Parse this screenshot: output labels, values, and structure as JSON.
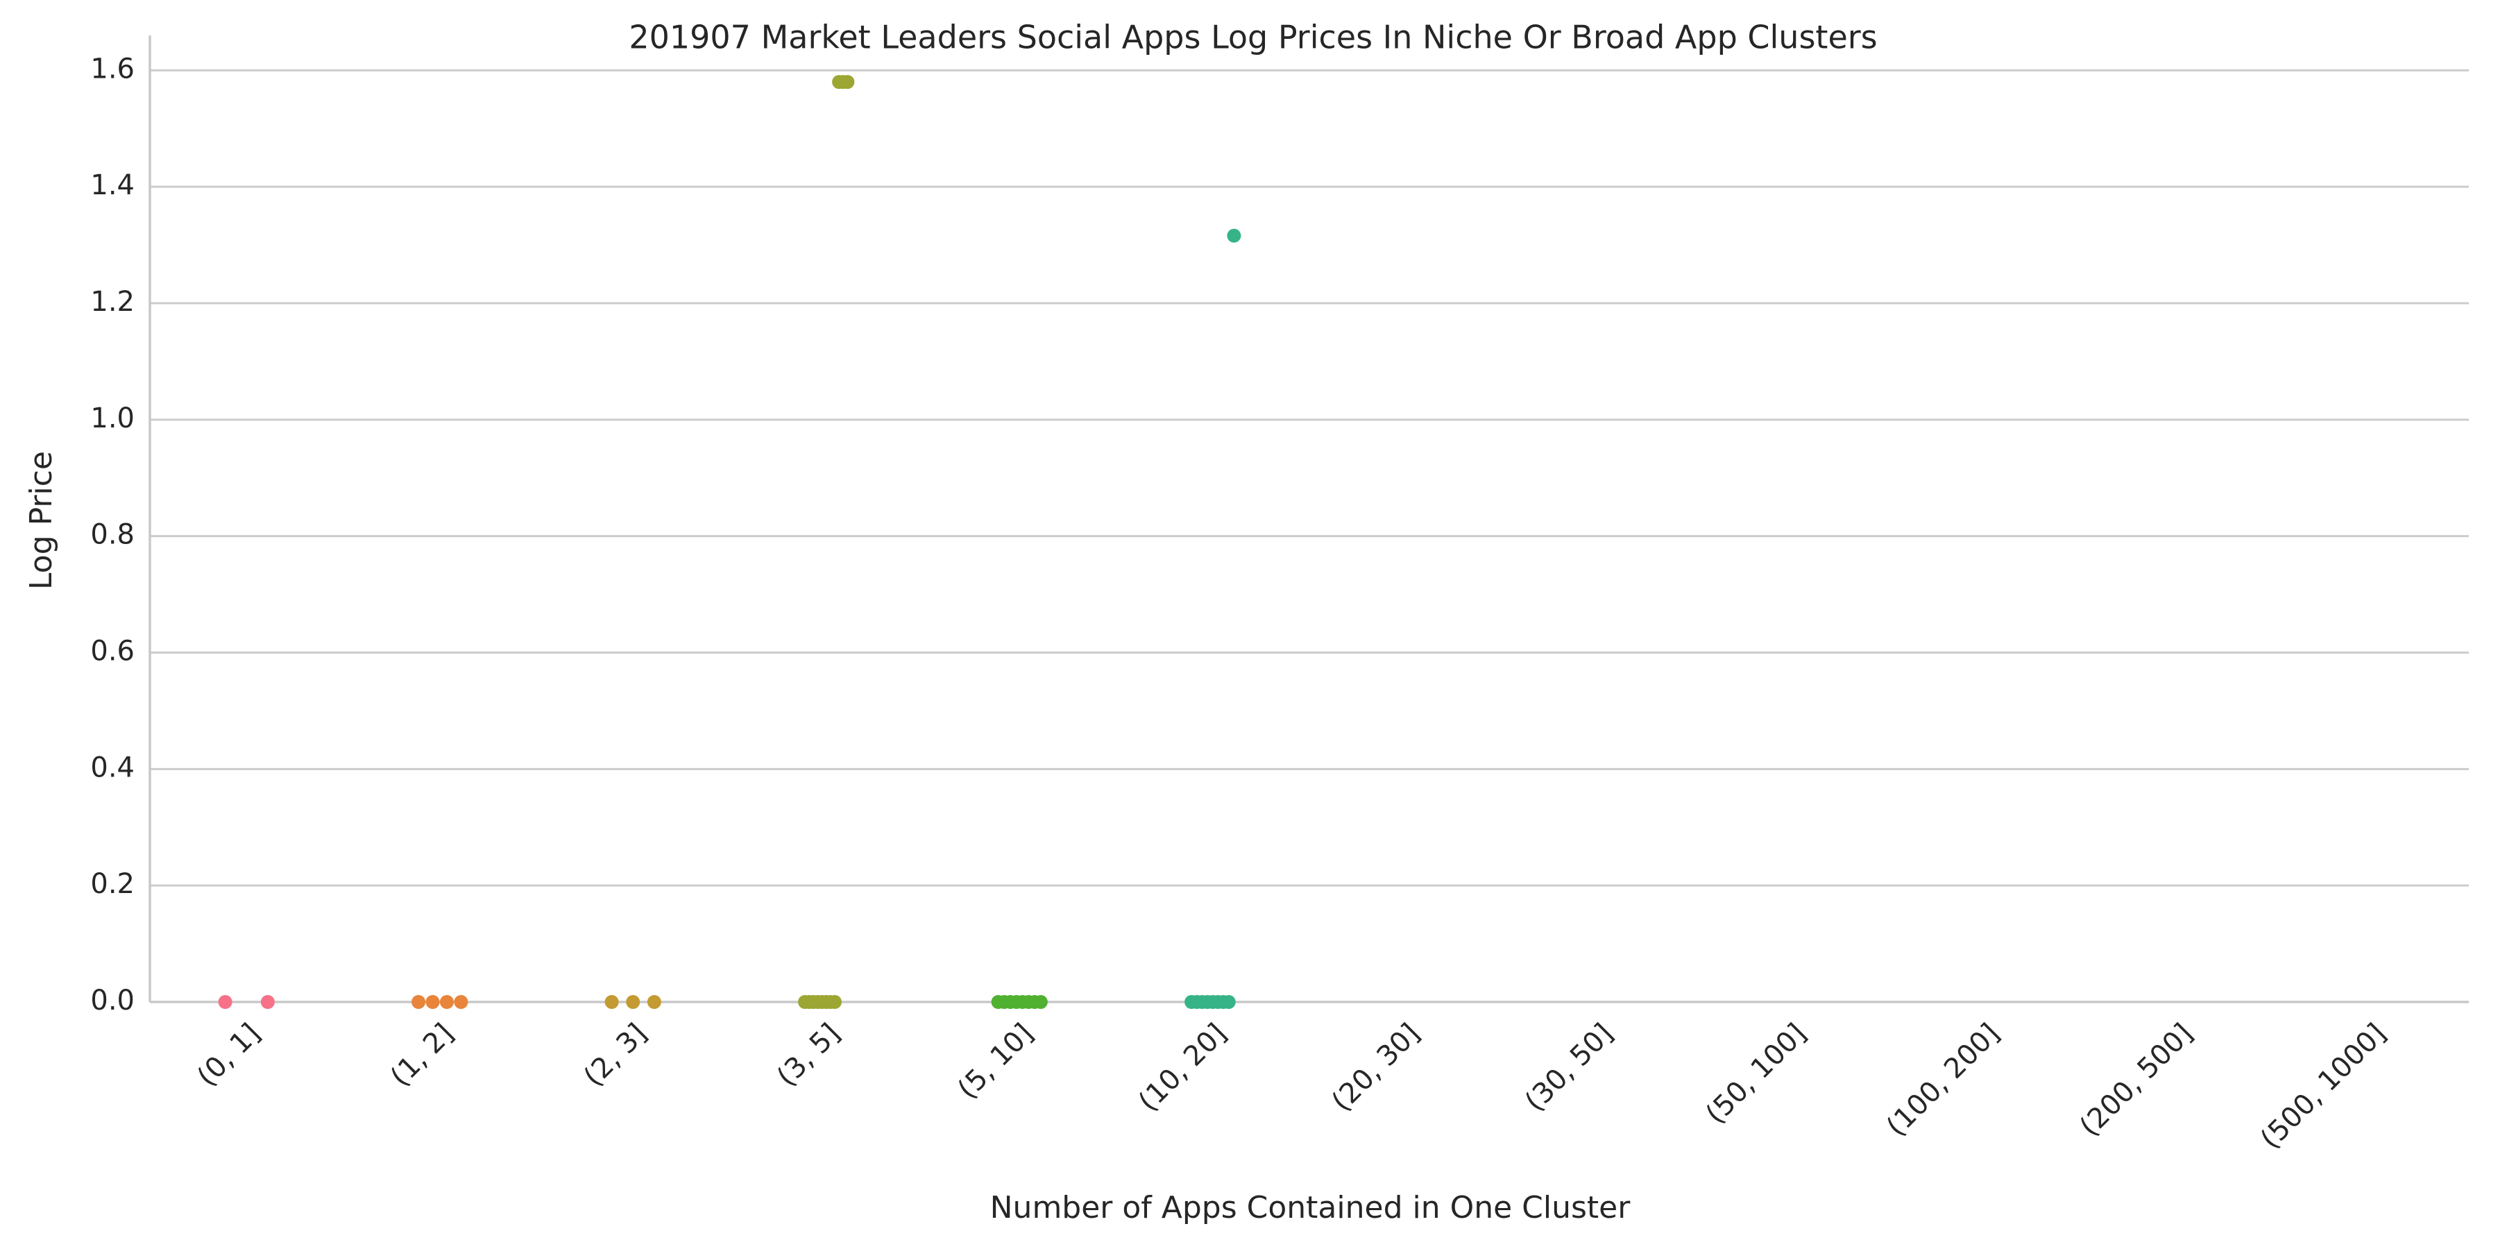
{
  "chart_data": {
    "type": "strip",
    "title": "201907 Market Leaders Social Apps Log Prices In Niche Or Broad App Clusters",
    "x_label": "Number of Apps Contained in One Cluster",
    "y_label": "Log Price",
    "categories": [
      "(0, 1]",
      "(1, 2]",
      "(2, 3]",
      "(3, 5]",
      "(5, 10]",
      "(10, 20]",
      "(20, 30]",
      "(30, 50]",
      "(50, 100]",
      "(100, 200]",
      "(200, 500]",
      "(500, 1000]"
    ],
    "colors": [
      "#f77189",
      "#e8853a",
      "#c49a33",
      "#9ca632",
      "#50b131",
      "#36b487",
      "#38aec0",
      "#5d9fe8",
      "#9a8cf4",
      "#d772f0",
      "#f566c2",
      "#f56c98"
    ],
    "values": [
      [
        0,
        0
      ],
      [
        0,
        0,
        0,
        0
      ],
      [
        0,
        0,
        0
      ],
      [
        0,
        0,
        0,
        0,
        0,
        0,
        0,
        0,
        1.58,
        1.58,
        1.58
      ],
      [
        0,
        0,
        0,
        0,
        0,
        0,
        0,
        0
      ],
      [
        0,
        0,
        0,
        0,
        0,
        0,
        0,
        0,
        1.316
      ],
      [],
      [],
      [],
      [],
      [],
      []
    ],
    "ylim": [
      0,
      1.66
    ],
    "yticks": [
      {
        "value": 0,
        "label": "0.0"
      },
      {
        "value": 0.2,
        "label": "0.2"
      },
      {
        "value": 0.4,
        "label": "0.4"
      },
      {
        "value": 0.6,
        "label": "0.6"
      },
      {
        "value": 0.8,
        "label": "0.8"
      },
      {
        "value": 1,
        "label": "1.0"
      },
      {
        "value": 1.2,
        "label": "1.2"
      },
      {
        "value": 1.4,
        "label": "1.4"
      },
      {
        "value": 1.6,
        "label": "1.6"
      }
    ],
    "grid": true
  }
}
